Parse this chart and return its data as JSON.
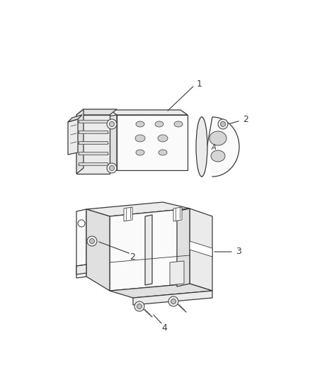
{
  "background_color": "#ffffff",
  "line_color": "#3a3a3a",
  "label_color": "#3a3a3a",
  "figure_width": 4.38,
  "figure_height": 5.33,
  "dpi": 100,
  "lw": 0.9,
  "fill_main": "#f5f5f5",
  "fill_dark": "#e0e0e0",
  "fill_light": "#fafafa",
  "fill_mid": "#ebebeb"
}
